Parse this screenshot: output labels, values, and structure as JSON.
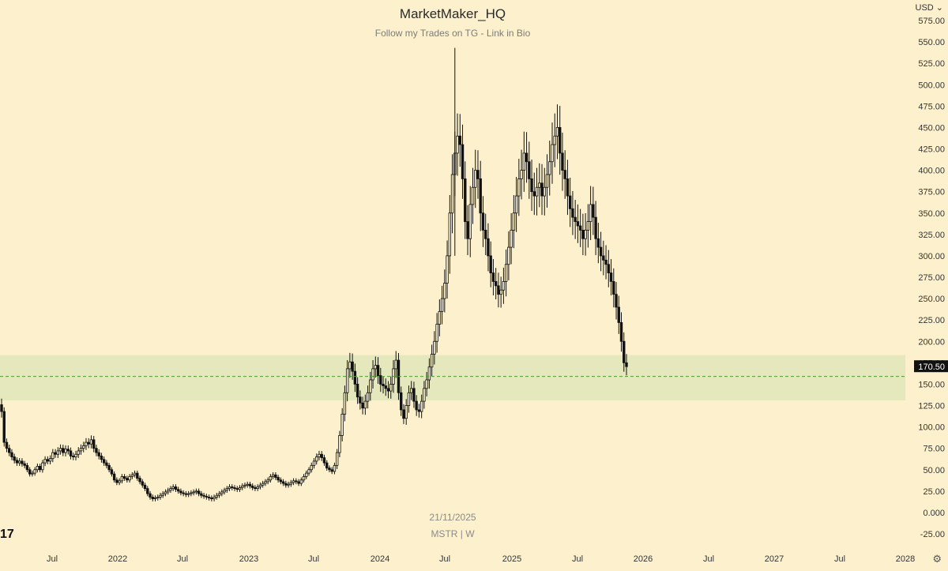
{
  "header": {
    "title": "MarketMaker_HQ",
    "subtitle": "Follow my Trades on TG - Link in Bio"
  },
  "footer": {
    "date": "21/11/2025",
    "symbol": "MSTR | W"
  },
  "currency_label": "USD ⌄",
  "logo_text": "17",
  "settings_icon": "gear-icon",
  "colors": {
    "background": "#fdf1cd",
    "zone_fill": "#e4e8bc",
    "candle": "#111111",
    "last_price_badge": "#111111",
    "dashed_level": "#4f9a2f"
  },
  "chart_data": {
    "type": "candlestick",
    "symbol": "MSTR",
    "interval": "W",
    "ylim": [
      -25,
      575
    ],
    "y_ticks": [
      "575.00",
      "550.00",
      "525.00",
      "500.00",
      "475.00",
      "450.00",
      "425.00",
      "400.00",
      "375.00",
      "350.00",
      "325.00",
      "300.00",
      "275.00",
      "250.00",
      "225.00",
      "200.00",
      "175.00",
      "150.00",
      "125.00",
      "100.00",
      "75.00",
      "50.00",
      "25.00",
      "0.000",
      "-25.00"
    ],
    "x_ticks": [
      "Jul",
      "2022",
      "Jul",
      "2023",
      "Jul",
      "2024",
      "Jul",
      "2025",
      "Jul",
      "2026",
      "Jul",
      "2027",
      "Jul",
      "2028"
    ],
    "last_price": "170.50",
    "last_price_value": 170.5,
    "zone": {
      "low": 131,
      "high": 184
    },
    "level": 159,
    "closes": [
      118,
      82,
      75,
      70,
      65,
      61,
      58,
      60,
      57,
      55,
      50,
      45,
      46,
      50,
      54,
      50,
      58,
      62,
      60,
      63,
      70,
      68,
      72,
      75,
      70,
      74,
      72,
      66,
      65,
      68,
      72,
      75,
      78,
      82,
      80,
      85,
      75,
      70,
      66,
      62,
      58,
      55,
      50,
      45,
      38,
      35,
      37,
      42,
      40,
      38,
      42,
      44,
      46,
      40,
      36,
      32,
      28,
      22,
      18,
      16,
      17,
      18,
      20,
      22,
      24,
      26,
      28,
      30,
      27,
      25,
      23,
      22,
      21,
      22,
      23,
      24,
      25,
      22,
      20,
      19,
      18,
      17,
      16,
      18,
      20,
      22,
      24,
      26,
      28,
      30,
      29,
      28,
      27,
      29,
      31,
      32,
      33,
      31,
      29,
      28,
      30,
      32,
      34,
      36,
      38,
      42,
      44,
      41,
      38,
      36,
      34,
      32,
      33,
      35,
      37,
      36,
      34,
      38,
      42,
      46,
      50,
      55,
      60,
      65,
      68,
      64,
      58,
      52,
      50,
      48,
      55,
      70,
      90,
      115,
      140,
      168,
      176,
      165,
      150,
      135,
      128,
      122,
      130,
      140,
      155,
      168,
      172,
      160,
      150,
      148,
      145,
      142,
      150,
      168,
      178,
      140,
      120,
      110,
      125,
      140,
      145,
      130,
      120,
      118,
      130,
      145,
      155,
      170,
      185,
      200,
      220,
      235,
      250,
      268,
      300,
      350,
      395,
      420,
      440,
      430,
      390,
      340,
      320,
      360,
      380,
      400,
      390,
      350,
      330,
      320,
      300,
      280,
      270,
      265,
      255,
      260,
      270,
      290,
      310,
      330,
      350,
      370,
      390,
      400,
      420,
      410,
      390,
      375,
      370,
      380,
      385,
      370,
      380,
      395,
      410,
      430,
      440,
      450,
      420,
      400,
      390,
      370,
      355,
      345,
      340,
      335,
      330,
      320,
      330,
      340,
      360,
      345,
      320,
      310,
      300,
      295,
      290,
      280,
      270,
      255,
      240,
      222,
      200,
      175,
      170.5
    ],
    "week_start_index": 0
  }
}
